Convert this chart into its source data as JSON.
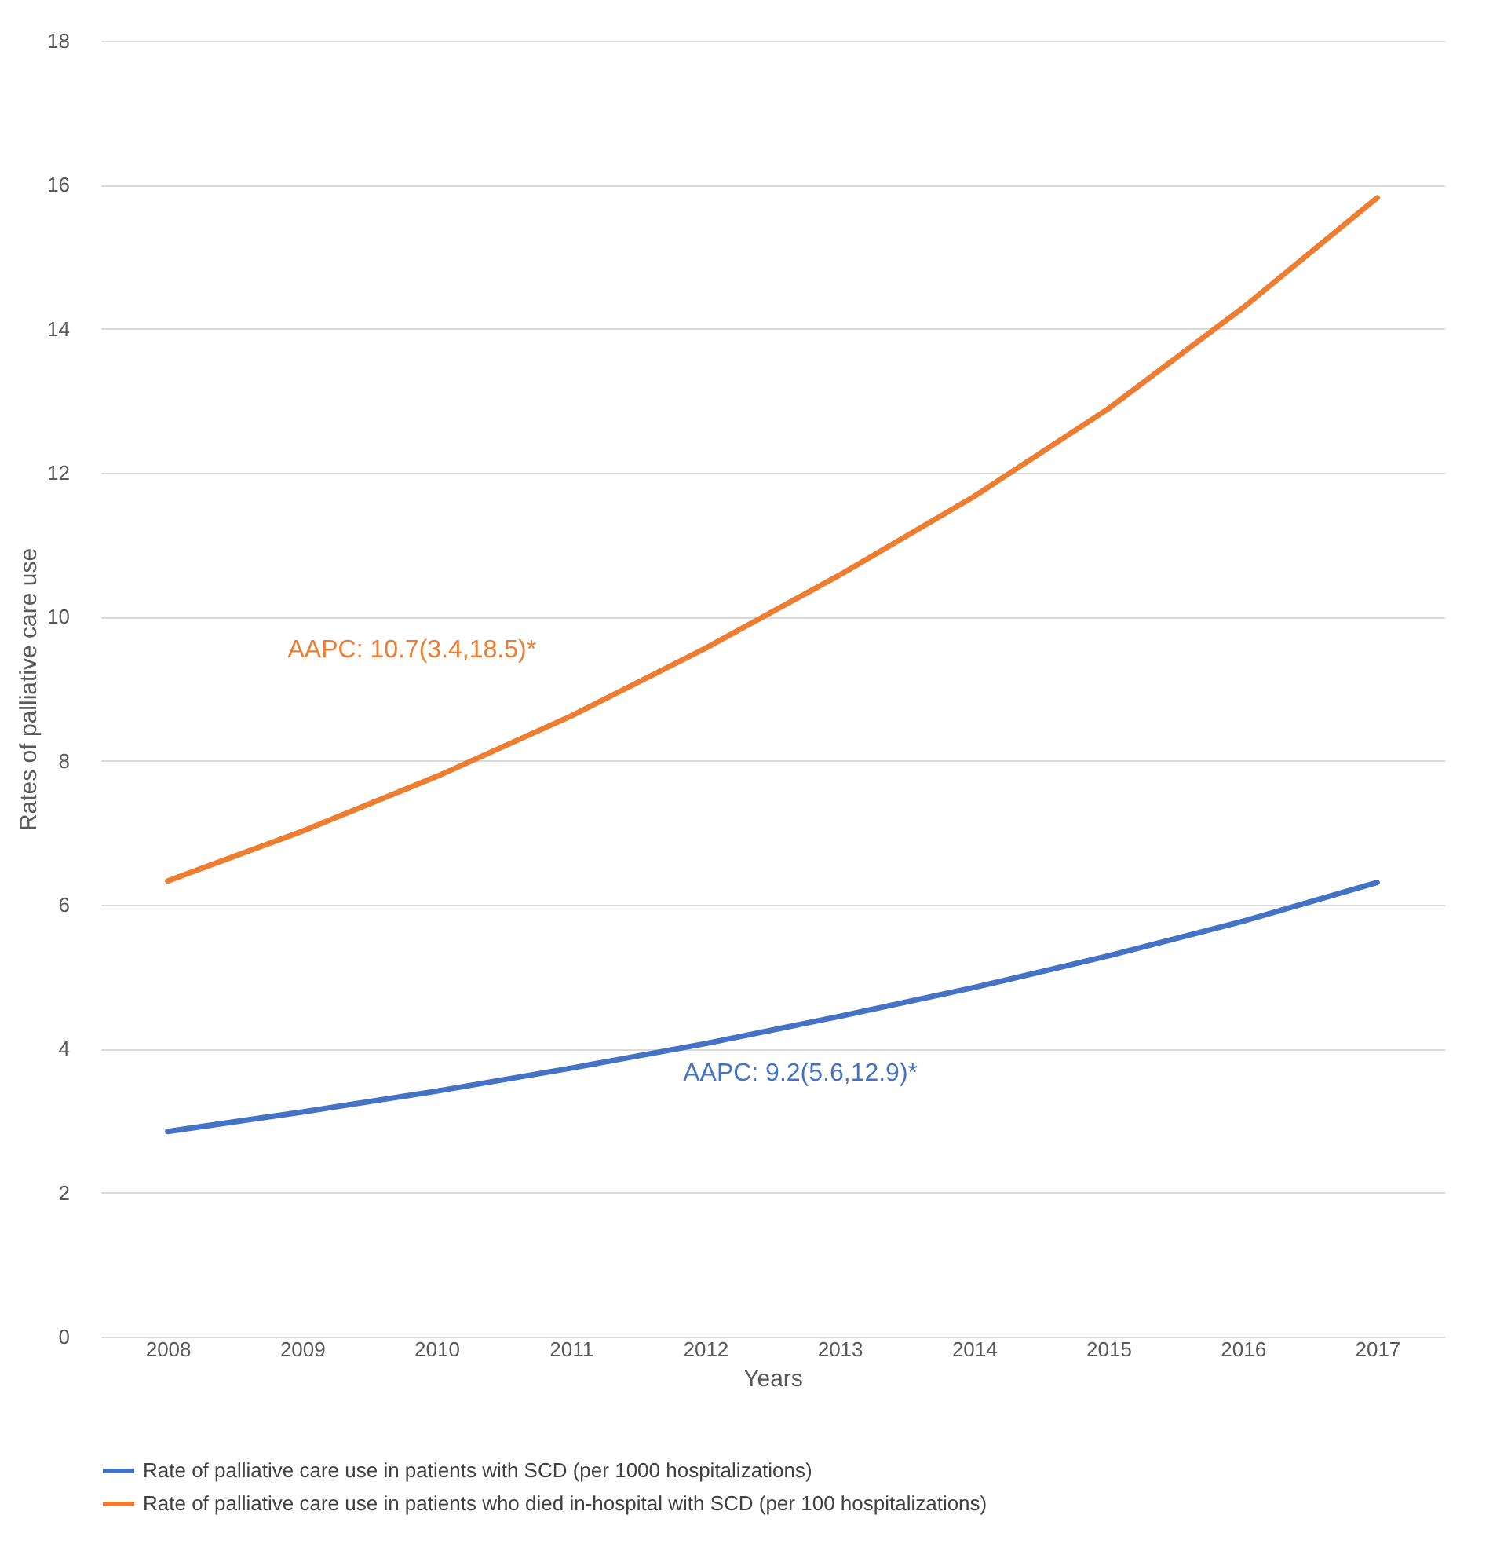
{
  "chart_data": {
    "type": "line",
    "xlabel": "Years",
    "ylabel": "Rates of palliative care use",
    "categories": [
      "2008",
      "2009",
      "2010",
      "2011",
      "2012",
      "2013",
      "2014",
      "2015",
      "2016",
      "2017"
    ],
    "series": [
      {
        "name": "Rate of palliative care use in patients with SCD (per 1000 hospitalizations)",
        "color": "#4472c4",
        "values": [
          2.85,
          3.12,
          3.41,
          3.73,
          4.07,
          4.45,
          4.85,
          5.29,
          5.77,
          6.31
        ]
      },
      {
        "name": "Rate of palliative care use in patients who died in-hospital with SCD (per 100 hospitalizations)",
        "color": "#ed7d31",
        "values": [
          6.33,
          7.02,
          7.78,
          8.62,
          9.56,
          10.58,
          11.67,
          12.89,
          14.29,
          15.82
        ]
      }
    ],
    "annotations": [
      "AAPC: 9.2(5.6,12.9)*",
      "AAPC: 10.7(3.4,18.5)*"
    ],
    "ylim": [
      0,
      18
    ],
    "yticks": [
      0,
      2,
      4,
      6,
      8,
      10,
      12,
      14,
      16,
      18
    ],
    "grid": "y",
    "legend": "bottom",
    "marker": "none",
    "line_style": "solid"
  }
}
